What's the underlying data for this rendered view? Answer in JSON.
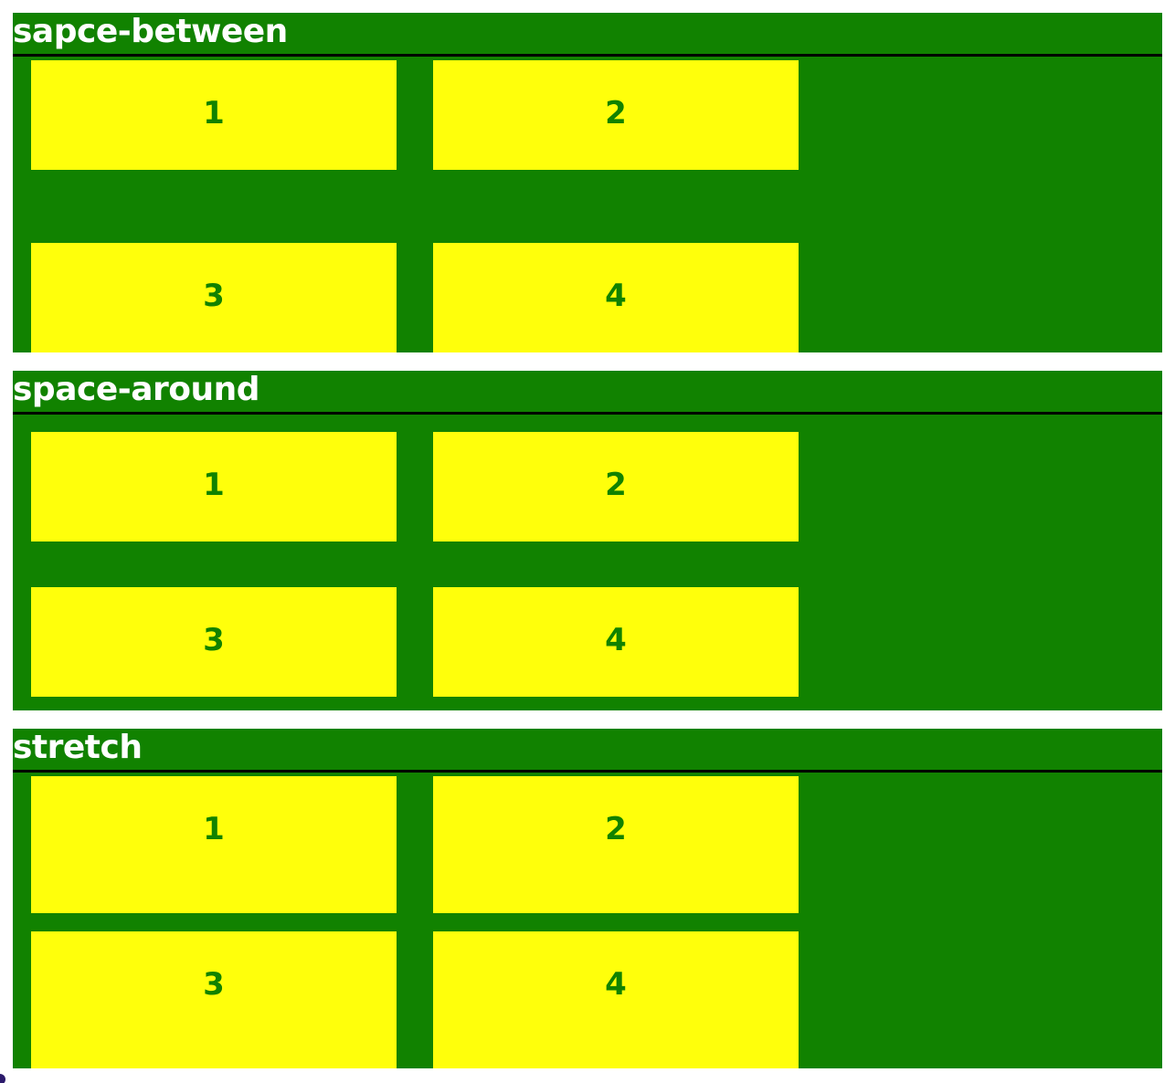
{
  "colors": {
    "panel_background": "#118200",
    "title_text": "#ffffff",
    "title_underline": "#000000",
    "box_background": "#ffff0b",
    "box_text": "#118200",
    "page_background": "#ffffff"
  },
  "panels": [
    {
      "title": "sapce-between",
      "items": [
        "1",
        "2",
        "3",
        "4"
      ]
    },
    {
      "title": "space-around",
      "items": [
        "1",
        "2",
        "3",
        "4"
      ]
    },
    {
      "title": "stretch",
      "items": [
        "1",
        "2",
        "3",
        "4"
      ]
    }
  ]
}
